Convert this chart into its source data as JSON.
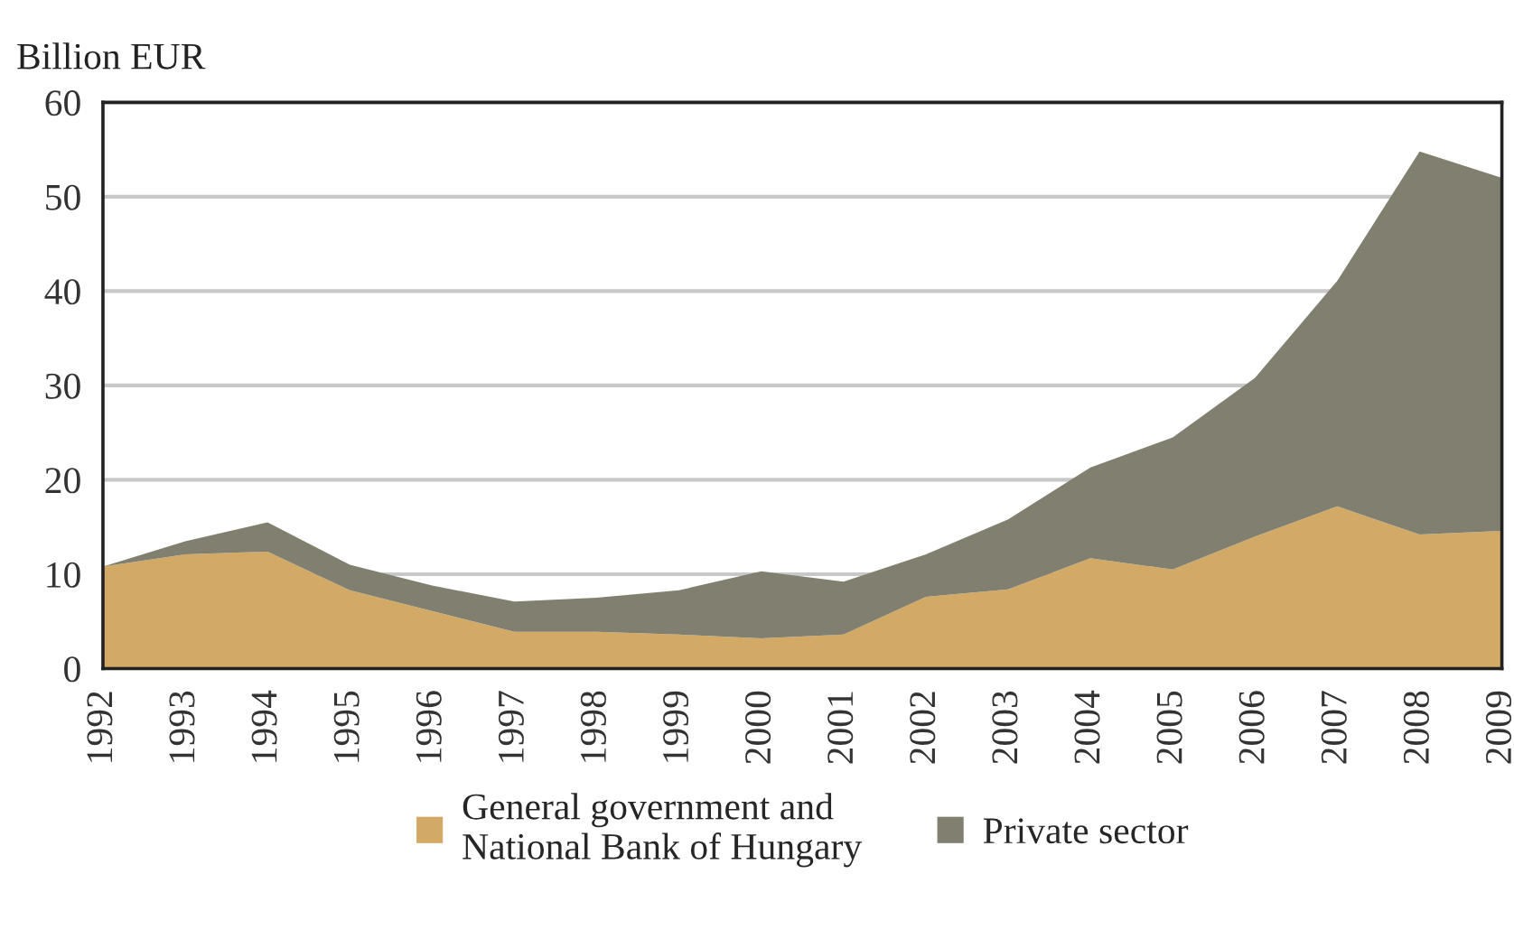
{
  "chart_data": {
    "type": "area",
    "stacked": true,
    "ylabel": "Billion EUR",
    "x": [
      1992,
      1993,
      1994,
      1995,
      1996,
      1997,
      1998,
      1999,
      2000,
      2001,
      2002,
      2003,
      2004,
      2005,
      2006,
      2007,
      2008,
      2009
    ],
    "series": [
      {
        "name": "General government and\nNational Bank of Hungary",
        "color": "#d2aa66",
        "values": [
          10.8,
          12.1,
          12.4,
          8.3,
          6.1,
          3.9,
          3.9,
          3.6,
          3.2,
          3.6,
          7.6,
          8.4,
          11.7,
          10.5,
          14.0,
          17.2,
          14.2,
          14.6
        ]
      },
      {
        "name": "Private sector",
        "color": "#818070",
        "values": [
          0.0,
          1.4,
          3.1,
          2.7,
          2.7,
          3.2,
          3.6,
          4.7,
          7.1,
          5.6,
          4.5,
          7.4,
          9.6,
          14.0,
          16.8,
          23.9,
          40.6,
          37.4
        ]
      }
    ],
    "xlim": [
      1992,
      2009
    ],
    "xticks": [
      1992,
      1993,
      1994,
      1995,
      1996,
      1997,
      1998,
      1999,
      2000,
      2001,
      2002,
      2003,
      2004,
      2005,
      2006,
      2007,
      2008,
      2009
    ],
    "ylim": [
      0,
      60
    ],
    "yticks": [
      0,
      10,
      20,
      30,
      40,
      50,
      60
    ],
    "grid": "y",
    "legend": "bottom"
  }
}
